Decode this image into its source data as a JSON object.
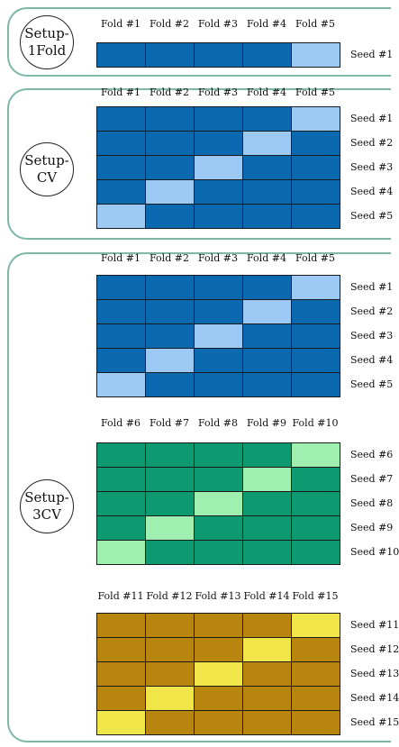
{
  "colors": {
    "panel_border": "#7fb8a8",
    "blue_dark": "#0b6aaf",
    "blue_light": "#9dc9f5",
    "green_dark": "#0e9a70",
    "green_light": "#9ff0b0",
    "gold_dark": "#b8860e",
    "gold_light": "#f0e64a"
  },
  "panels": [
    {
      "id": "setup-1fold",
      "label_line1": "Setup-",
      "label_line2": "1Fold",
      "blocks": [
        {
          "color_key": "blue",
          "fold_labels": [
            "Fold #1",
            "Fold #2",
            "Fold #3",
            "Fold #4",
            "Fold #5"
          ],
          "seed_labels": [
            "Seed #1"
          ],
          "highlight_cols": [
            4
          ]
        }
      ]
    },
    {
      "id": "setup-cv",
      "label_line1": "Setup-",
      "label_line2": "CV",
      "blocks": [
        {
          "color_key": "blue",
          "fold_labels": [
            "Fold #1",
            "Fold #2",
            "Fold #3",
            "Fold #4",
            "Fold #5"
          ],
          "seed_labels": [
            "Seed #1",
            "Seed #2",
            "Seed #3",
            "Seed #4",
            "Seed #5"
          ],
          "highlight_cols": [
            4,
            3,
            2,
            1,
            0
          ]
        }
      ]
    },
    {
      "id": "setup-3cv",
      "label_line1": "Setup-",
      "label_line2": "3CV",
      "blocks": [
        {
          "color_key": "blue",
          "fold_labels": [
            "Fold #1",
            "Fold #2",
            "Fold #3",
            "Fold #4",
            "Fold #5"
          ],
          "seed_labels": [
            "Seed #1",
            "Seed #2",
            "Seed #3",
            "Seed #4",
            "Seed #5"
          ],
          "highlight_cols": [
            4,
            3,
            2,
            1,
            0
          ]
        },
        {
          "color_key": "green",
          "fold_labels": [
            "Fold #6",
            "Fold #7",
            "Fold #8",
            "Fold #9",
            "Fold #10"
          ],
          "seed_labels": [
            "Seed #6",
            "Seed #7",
            "Seed #8",
            "Seed #9",
            "Seed #10"
          ],
          "highlight_cols": [
            4,
            3,
            2,
            1,
            0
          ]
        },
        {
          "color_key": "gold",
          "fold_labels": [
            "Fold #11",
            "Fold #12",
            "Fold #13",
            "Fold #14",
            "Fold #15"
          ],
          "seed_labels": [
            "Seed #11",
            "Seed #12",
            "Seed #13",
            "Seed #14",
            "Seed #15"
          ],
          "highlight_cols": [
            4,
            3,
            2,
            1,
            0
          ]
        }
      ]
    }
  ]
}
